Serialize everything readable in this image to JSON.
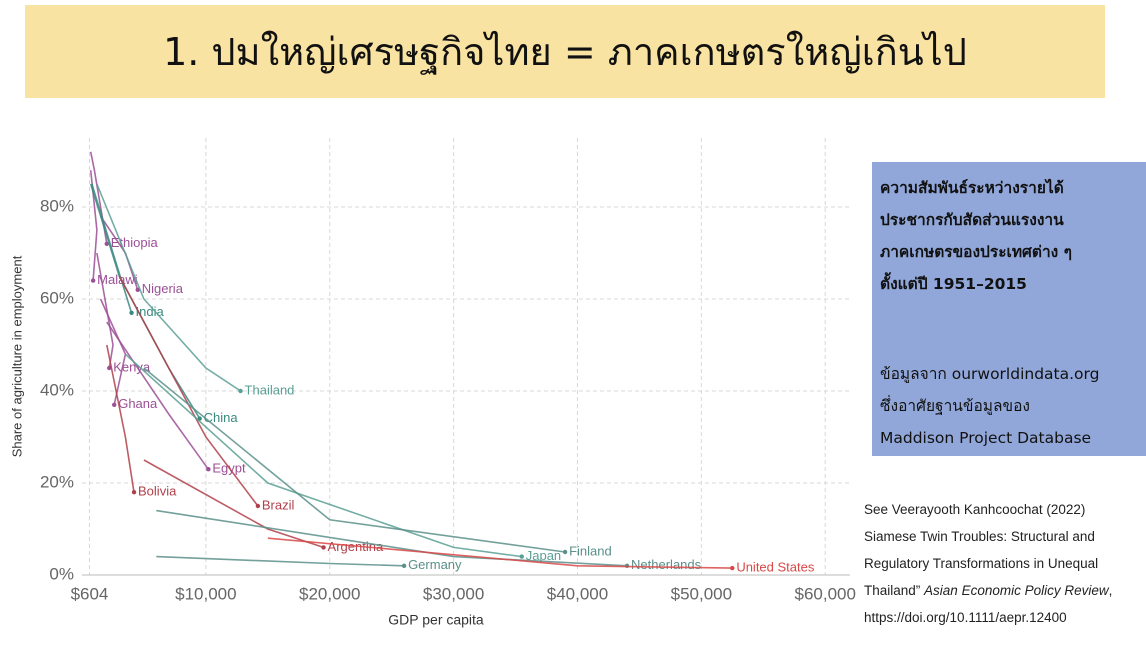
{
  "slide_title": "1. ปมใหญ่เศรษฐกิจไทย = ภาคเกษตรใหญ่เกินไป",
  "info_box": {
    "heading": [
      "ความสัมพันธ์ระหว่างรายได้",
      "ประชากรกับสัดส่วนแรงงาน",
      "ภาคเกษตรของประเทศต่าง ๆ",
      "ตั้งแต่ปี 1951–2015"
    ],
    "source": [
      "ข้อมูลจาก ourworldindata.org",
      "ซึ่งอาศัยฐานข้อมูลของ",
      "Maddison Project Database"
    ]
  },
  "citation": {
    "lines": [
      "See Veerayooth Kanhcoochat (2022)",
      "Siamese Twin Troubles: Structural and",
      "Regulatory Transformations in Unequal"
    ],
    "line4_prefix": "Thailand”",
    "journal": "Asian Economic Policy Review",
    "line4_suffix": ",",
    "url": "https://doi.org/10.1111/aepr.12400"
  },
  "chart_data": {
    "type": "line",
    "x_label": "GDP per capita",
    "y_label": "Share of agriculture in employment",
    "xlim": [
      0,
      62000
    ],
    "ylim": [
      0,
      95
    ],
    "xticks": [
      {
        "value": 604,
        "label": "$604"
      },
      {
        "value": 10000,
        "label": "$10,000"
      },
      {
        "value": 20000,
        "label": "$20,000"
      },
      {
        "value": 30000,
        "label": "$30,000"
      },
      {
        "value": 40000,
        "label": "$40,000"
      },
      {
        "value": 50000,
        "label": "$50,000"
      },
      {
        "value": 60000,
        "label": "$60,000"
      }
    ],
    "yticks": [
      {
        "value": 0,
        "label": "0%"
      },
      {
        "value": 20,
        "label": "20%"
      },
      {
        "value": 40,
        "label": "40%"
      },
      {
        "value": 60,
        "label": "60%"
      },
      {
        "value": 80,
        "label": "80%"
      }
    ],
    "grid": true,
    "series": [
      {
        "name": "Ethiopia",
        "color": "#9b4f96",
        "x": [
          700,
          1000,
          1500,
          2000
        ],
        "values": [
          92,
          88,
          80,
          72
        ]
      },
      {
        "name": "Malawi",
        "color": "#9b4f96",
        "x": [
          700,
          1200,
          900
        ],
        "values": [
          88,
          75,
          64
        ]
      },
      {
        "name": "Nigeria",
        "color": "#9b4f96",
        "x": [
          1500,
          3500,
          4500
        ],
        "values": [
          78,
          70,
          62
        ]
      },
      {
        "name": "India",
        "color": "#3a8a80",
        "x": [
          800,
          2500,
          4000
        ],
        "values": [
          85,
          70,
          57
        ]
      },
      {
        "name": "Kenya",
        "color": "#9b4f96",
        "x": [
          1200,
          2500,
          2200
        ],
        "values": [
          70,
          50,
          45
        ]
      },
      {
        "name": "Ghana",
        "color": "#9b4f96",
        "x": [
          1500,
          3500,
          2600
        ],
        "values": [
          60,
          48,
          37
        ]
      },
      {
        "name": "Thailand",
        "color": "#5a9f94",
        "x": [
          1200,
          5000,
          10000,
          12800
        ],
        "values": [
          85,
          60,
          45,
          40
        ]
      },
      {
        "name": "China",
        "color": "#3a8a80",
        "x": [
          700,
          3000,
          7000,
          9500
        ],
        "values": [
          85,
          65,
          45,
          34
        ]
      },
      {
        "name": "Egypt",
        "color": "#9b4f96",
        "x": [
          2000,
          7000,
          10200
        ],
        "values": [
          55,
          35,
          23
        ]
      },
      {
        "name": "Bolivia",
        "color": "#b0404a",
        "x": [
          2000,
          3500,
          4200
        ],
        "values": [
          50,
          30,
          18
        ]
      },
      {
        "name": "Brazil",
        "color": "#b0404a",
        "x": [
          3000,
          10000,
          14200
        ],
        "values": [
          65,
          30,
          15
        ]
      },
      {
        "name": "Argentina",
        "color": "#b0404a",
        "x": [
          5000,
          15000,
          19500
        ],
        "values": [
          25,
          10,
          6
        ]
      },
      {
        "name": "Germany",
        "color": "#5a8f8a",
        "x": [
          6000,
          20000,
          26000
        ],
        "values": [
          4,
          2.5,
          2
        ]
      },
      {
        "name": "Japan",
        "color": "#5a9f94",
        "x": [
          3500,
          15000,
          30000,
          35500
        ],
        "values": [
          48,
          20,
          6,
          4
        ]
      },
      {
        "name": "Finland",
        "color": "#5a8f8a",
        "x": [
          5000,
          20000,
          39000
        ],
        "values": [
          45,
          12,
          5
        ]
      },
      {
        "name": "Netherlands",
        "color": "#5a8f8a",
        "x": [
          6000,
          30000,
          44000
        ],
        "values": [
          14,
          4,
          2
        ]
      },
      {
        "name": "United States",
        "color": "#d94848",
        "x": [
          15000,
          40000,
          52500
        ],
        "values": [
          8,
          2,
          1.5
        ]
      }
    ]
  }
}
